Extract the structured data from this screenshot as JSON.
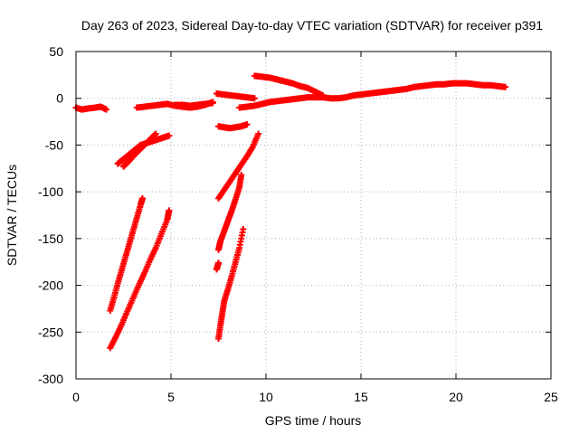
{
  "chart_data": {
    "type": "scatter",
    "title": "Day 263 of 2023, Sidereal Day-to-day VTEC variation (SDTVAR) for receiver p391",
    "xlabel": "GPS time / hours",
    "ylabel": "SDTVAR / TECUs",
    "xlim": [
      0,
      25
    ],
    "ylim": [
      -300,
      50
    ],
    "xticks": [
      0,
      5,
      10,
      15,
      20,
      25
    ],
    "yticks": [
      50,
      0,
      -50,
      -100,
      -150,
      -200,
      -250,
      -300
    ],
    "grid": true,
    "legend": "none",
    "marker": "plus",
    "color": "#ff0000",
    "series": [
      {
        "name": "s1",
        "points": [
          [
            0.0,
            -10
          ],
          [
            0.3,
            -12
          ],
          [
            0.6,
            -11
          ],
          [
            1.0,
            -10
          ],
          [
            1.3,
            -9
          ],
          [
            1.6,
            -12
          ]
        ]
      },
      {
        "name": "s2",
        "points": [
          [
            3.2,
            -10
          ],
          [
            3.6,
            -9
          ],
          [
            4.0,
            -8
          ],
          [
            4.4,
            -7
          ],
          [
            4.8,
            -6
          ],
          [
            5.2,
            -8
          ],
          [
            5.6,
            -9
          ],
          [
            6.0,
            -10
          ],
          [
            6.4,
            -9
          ],
          [
            6.8,
            -7
          ],
          [
            7.2,
            -4
          ]
        ]
      },
      {
        "name": "s3",
        "points": [
          [
            5.2,
            -7
          ],
          [
            5.6,
            -7
          ],
          [
            6.0,
            -8
          ],
          [
            6.4,
            -7
          ],
          [
            6.8,
            -6
          ],
          [
            7.2,
            -5
          ]
        ]
      },
      {
        "name": "s4",
        "points": [
          [
            7.4,
            5
          ],
          [
            7.8,
            4
          ],
          [
            8.2,
            3
          ],
          [
            8.6,
            2
          ],
          [
            9.0,
            1
          ],
          [
            9.4,
            0
          ]
        ]
      },
      {
        "name": "s5",
        "points": [
          [
            9.4,
            24
          ],
          [
            9.8,
            23
          ],
          [
            10.2,
            22
          ],
          [
            10.6,
            20
          ],
          [
            11.0,
            18
          ],
          [
            11.4,
            16
          ],
          [
            11.8,
            13
          ],
          [
            12.2,
            11
          ],
          [
            12.6,
            7
          ],
          [
            13.0,
            3
          ]
        ]
      },
      {
        "name": "s6",
        "points": [
          [
            8.6,
            -10
          ],
          [
            9.0,
            -9
          ],
          [
            9.4,
            -8
          ],
          [
            9.8,
            -6
          ],
          [
            10.2,
            -4
          ],
          [
            10.6,
            -3
          ],
          [
            11.0,
            -2
          ],
          [
            11.4,
            -1
          ],
          [
            11.8,
            0
          ],
          [
            12.2,
            1
          ],
          [
            12.6,
            1
          ],
          [
            13.0,
            1
          ],
          [
            13.4,
            0
          ],
          [
            13.8,
            0
          ],
          [
            14.2,
            1
          ],
          [
            14.6,
            3
          ],
          [
            15.0,
            4
          ],
          [
            15.4,
            5
          ],
          [
            15.8,
            6
          ],
          [
            16.2,
            7
          ],
          [
            16.6,
            8
          ],
          [
            17.0,
            9
          ],
          [
            17.4,
            10
          ],
          [
            17.8,
            12
          ],
          [
            18.2,
            13
          ],
          [
            18.6,
            14
          ],
          [
            19.0,
            15
          ],
          [
            19.4,
            15
          ],
          [
            19.8,
            16
          ],
          [
            20.2,
            16
          ],
          [
            20.6,
            16
          ],
          [
            21.0,
            15
          ],
          [
            21.4,
            14
          ],
          [
            21.8,
            14
          ],
          [
            22.2,
            13
          ],
          [
            22.6,
            12
          ]
        ]
      },
      {
        "name": "s7",
        "points": [
          [
            7.5,
            -30
          ],
          [
            7.8,
            -31
          ],
          [
            8.1,
            -32
          ],
          [
            8.4,
            -31
          ],
          [
            8.7,
            -30
          ],
          [
            9.0,
            -28
          ]
        ]
      },
      {
        "name": "s8",
        "points": [
          [
            2.2,
            -70
          ],
          [
            2.5,
            -65
          ],
          [
            2.8,
            -60
          ],
          [
            3.1,
            -55
          ],
          [
            3.4,
            -50
          ],
          [
            3.7,
            -48
          ],
          [
            4.0,
            -46
          ],
          [
            4.3,
            -44
          ],
          [
            4.6,
            -42
          ],
          [
            4.9,
            -40
          ]
        ]
      },
      {
        "name": "s9",
        "points": [
          [
            2.5,
            -73
          ],
          [
            2.8,
            -67
          ],
          [
            3.1,
            -60
          ],
          [
            3.4,
            -54
          ],
          [
            3.7,
            -48
          ],
          [
            4.0,
            -42
          ],
          [
            4.2,
            -38
          ]
        ]
      },
      {
        "name": "s10",
        "points": [
          [
            1.8,
            -227
          ],
          [
            2.0,
            -213
          ],
          [
            2.2,
            -198
          ],
          [
            2.4,
            -184
          ],
          [
            2.6,
            -170
          ],
          [
            2.8,
            -156
          ],
          [
            3.0,
            -142
          ],
          [
            3.2,
            -128
          ],
          [
            3.4,
            -114
          ],
          [
            3.5,
            -107
          ]
        ]
      },
      {
        "name": "s11",
        "points": [
          [
            1.8,
            -267
          ],
          [
            2.1,
            -255
          ],
          [
            2.4,
            -242
          ],
          [
            2.7,
            -228
          ],
          [
            3.0,
            -214
          ],
          [
            3.3,
            -200
          ],
          [
            3.6,
            -187
          ],
          [
            3.9,
            -173
          ],
          [
            4.2,
            -160
          ],
          [
            4.5,
            -145
          ],
          [
            4.8,
            -130
          ],
          [
            4.9,
            -120
          ]
        ]
      },
      {
        "name": "s12",
        "points": [
          [
            7.5,
            -107
          ],
          [
            7.8,
            -98
          ],
          [
            8.1,
            -89
          ],
          [
            8.4,
            -80
          ],
          [
            8.7,
            -71
          ],
          [
            9.0,
            -62
          ],
          [
            9.3,
            -52
          ],
          [
            9.6,
            -38
          ]
        ]
      },
      {
        "name": "s13",
        "points": [
          [
            7.5,
            -162
          ],
          [
            7.6,
            -153
          ],
          [
            7.8,
            -142
          ],
          [
            8.0,
            -131
          ],
          [
            8.2,
            -120
          ],
          [
            8.4,
            -108
          ],
          [
            8.6,
            -95
          ],
          [
            8.7,
            -82
          ]
        ]
      },
      {
        "name": "s14",
        "points": [
          [
            7.4,
            -183
          ],
          [
            7.5,
            -176
          ]
        ]
      },
      {
        "name": "s15",
        "points": [
          [
            7.5,
            -257
          ],
          [
            7.6,
            -243
          ],
          [
            7.7,
            -230
          ],
          [
            7.8,
            -217
          ],
          [
            8.0,
            -204
          ],
          [
            8.2,
            -190
          ],
          [
            8.4,
            -175
          ],
          [
            8.6,
            -160
          ],
          [
            8.8,
            -140
          ]
        ]
      }
    ]
  }
}
